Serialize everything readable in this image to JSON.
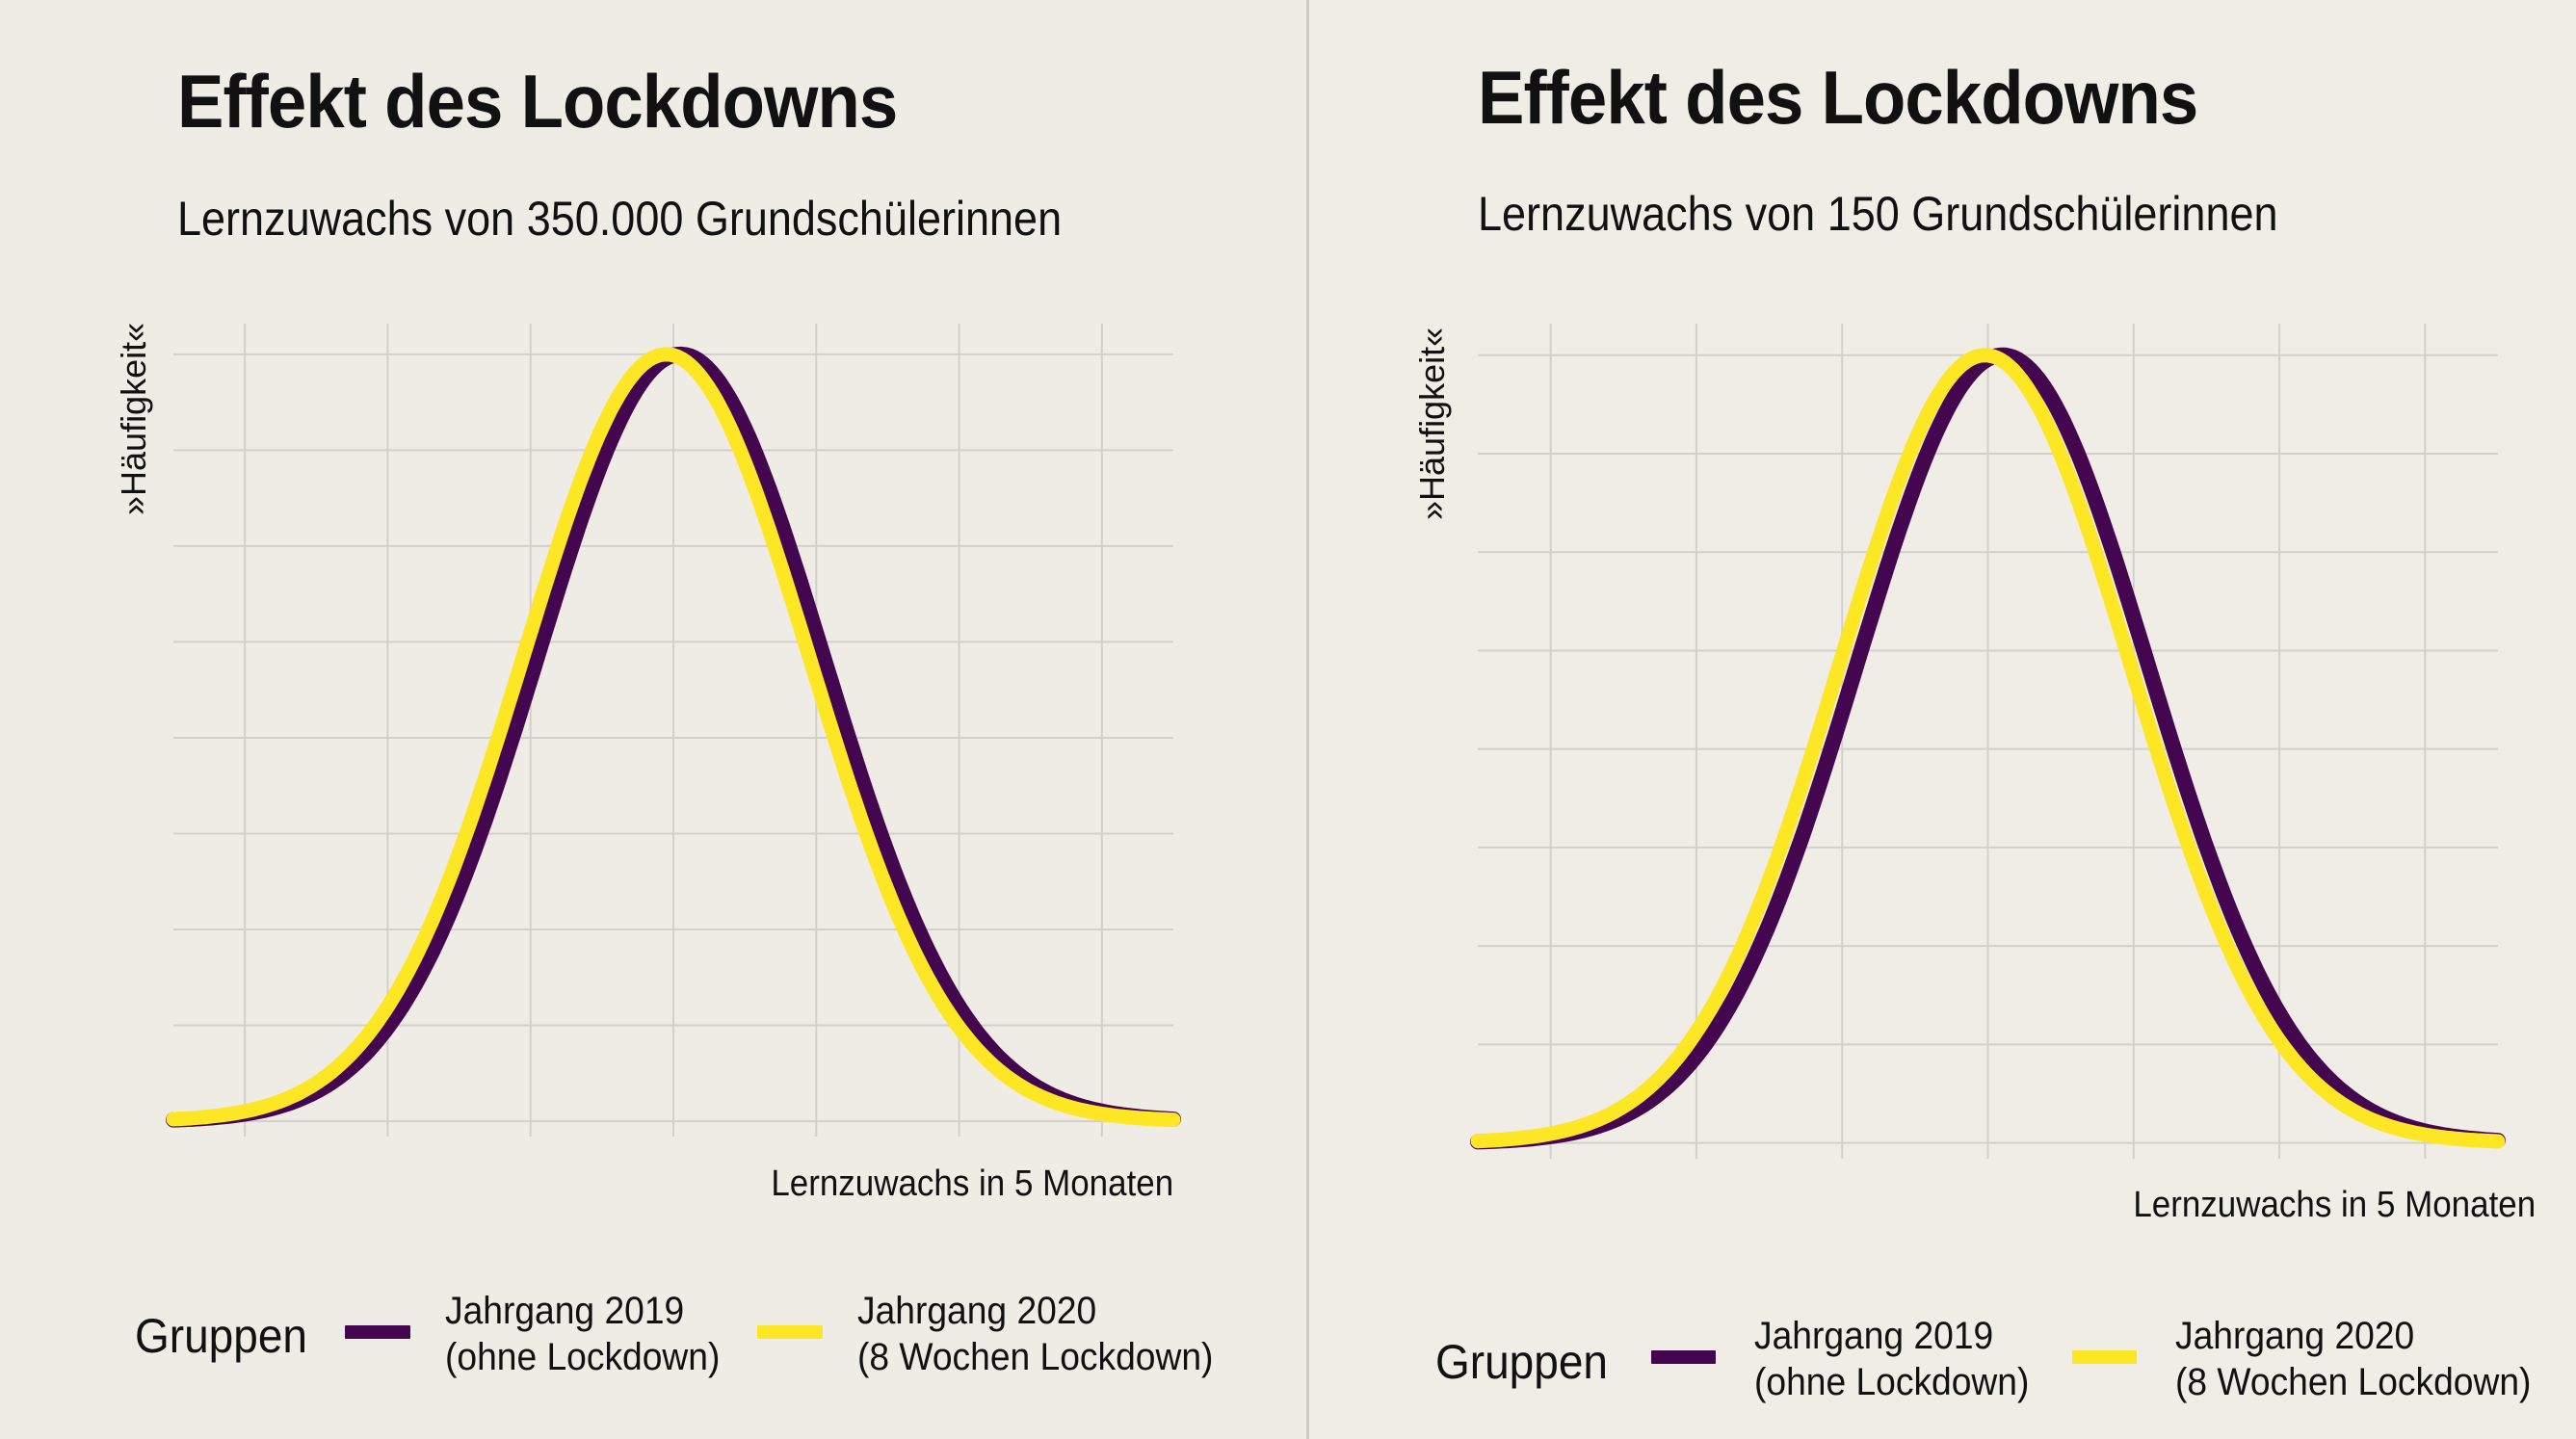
{
  "colors": {
    "background": "#efebe5",
    "grid": "#d3d0cc",
    "series_2019": "#44064f",
    "series_2020": "#fde725"
  },
  "legend": {
    "title": "Gruppen",
    "items": [
      {
        "line1": "Jahrgang 2019",
        "line2": "(ohne Lockdown)"
      },
      {
        "line1": "Jahrgang 2020",
        "line2": "(8 Wochen Lockdown)"
      }
    ]
  },
  "panels": [
    {
      "title": "Effekt des Lockdowns",
      "subtitle": "Lernzuwachs von 350.000 Grundschülerinnen",
      "ylabel": "»Häufigkeit«",
      "xlabel": "Lernzuwachs in 5 Monaten"
    },
    {
      "title": "Effekt des Lockdowns",
      "subtitle": "Lernzuwachs von 150 Grundschülerinnen",
      "ylabel": "»Häufigkeit«",
      "xlabel": "Lernzuwachs in 5 Monaten"
    }
  ],
  "chart_data": [
    {
      "type": "line",
      "title": "Effekt des Lockdowns",
      "subtitle": "Lernzuwachs von 350.000 Grundschülerinnen",
      "xlabel": "Lernzuwachs in 5 Monaten",
      "ylabel": "»Häufigkeit«",
      "x_tick_labels": false,
      "y_tick_labels": false,
      "xlim": [
        -3.5,
        3.5
      ],
      "ylim": [
        -0.02,
        1.04
      ],
      "x_gridlines": [
        -3,
        -2,
        -1,
        0,
        1,
        2,
        3
      ],
      "y_gridlines": [
        0,
        0.125,
        0.25,
        0.375,
        0.5,
        0.625,
        0.75,
        0.875,
        1.0
      ],
      "x_range": [
        -3.5,
        3.5
      ],
      "curve": "normal density (peak = 1)",
      "grid": true,
      "legend_position": "bottom",
      "series": [
        {
          "name": "Jahrgang 2019 (ohne Lockdown)",
          "color": "#44064f",
          "mean": 0.05,
          "sd": 1.0
        },
        {
          "name": "Jahrgang 2020 (8 Wochen Lockdown)",
          "color": "#fde725",
          "mean": -0.05,
          "sd": 1.0
        }
      ]
    },
    {
      "type": "line",
      "title": "Effekt des Lockdowns",
      "subtitle": "Lernzuwachs von 150 Grundschülerinnen",
      "xlabel": "Lernzuwachs in 5 Monaten",
      "ylabel": "»Häufigkeit«",
      "x_tick_labels": false,
      "y_tick_labels": false,
      "xlim": [
        -3.5,
        3.5
      ],
      "ylim": [
        -0.02,
        1.04
      ],
      "x_gridlines": [
        -3,
        -2,
        -1,
        0,
        1,
        2,
        3
      ],
      "y_gridlines": [
        0,
        0.125,
        0.25,
        0.375,
        0.5,
        0.625,
        0.75,
        0.875,
        1.0
      ],
      "x_range": [
        -3.5,
        3.5
      ],
      "curve": "normal density (peak = 1)",
      "grid": true,
      "legend_position": "bottom",
      "series": [
        {
          "name": "Jahrgang 2019 (ohne Lockdown)",
          "color": "#44064f",
          "mean": 0.1,
          "sd": 1.0
        },
        {
          "name": "Jahrgang 2020 (8 Wochen Lockdown)",
          "color": "#fde725",
          "mean": -0.02,
          "sd": 1.0
        }
      ]
    }
  ]
}
